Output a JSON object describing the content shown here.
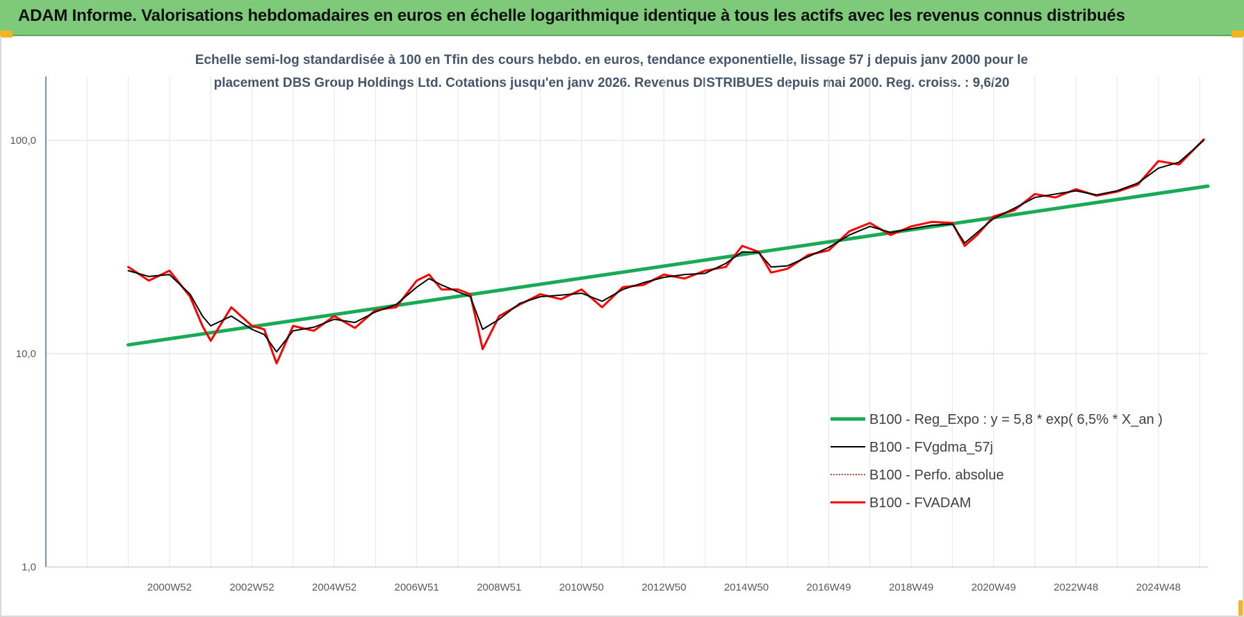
{
  "banner": {
    "title": "ADAM Informe. Valorisations hebdomadaires en euros en échelle logarithmique identique à tous les actifs avec les revenus connus distribués"
  },
  "colors": {
    "banner": "#7ec97a",
    "regression": "#1aaa55",
    "smoothed": "#000000",
    "absolute": "#c00000",
    "adam": "#ff0000"
  },
  "chart_data": {
    "type": "line",
    "title_lines": [
      "Echelle semi-log standardisée à 100 en Tfin des cours hebdo. en euros, tendance exponentielle, lissage 57 j depuis janv 2000 pour le",
      "placement DBS Group Holdings Ltd. Cotations jusqu'en janv 2026. Revenus DISTRIBUES depuis mai 2000. Reg. croiss. : 9,6/20"
    ],
    "y_scale": "log",
    "ylim": [
      1,
      180
    ],
    "y_ticks": [
      "1,0",
      "10,0",
      "100,0"
    ],
    "x_range": [
      1998.0,
      2026.2
    ],
    "x_tick_labels": [
      "2000W52",
      "2002W52",
      "2004W52",
      "2006W51",
      "2008W51",
      "2010W50",
      "2012W50",
      "2014W50",
      "2016W49",
      "2018W49",
      "2020W49",
      "2022W48",
      "2024W48"
    ],
    "grid": true,
    "legend_position": "bottom-right",
    "series": [
      {
        "name": "B100 - Reg_Expo : y = 5,8 * exp( 6,5% *  X_an )",
        "x": [
          2000.0,
          2026.2
        ],
        "values": [
          11.0,
          61.0
        ]
      },
      {
        "name": "B100 - FVgdma_57j",
        "x": [
          2000.0,
          2000.5,
          2001.0,
          2001.5,
          2001.8,
          2002.0,
          2002.5,
          2003.0,
          2003.3,
          2003.6,
          2004.0,
          2004.5,
          2005.0,
          2005.5,
          2006.0,
          2006.5,
          2007.0,
          2007.3,
          2007.6,
          2008.0,
          2008.3,
          2008.6,
          2009.0,
          2009.5,
          2010.0,
          2010.5,
          2011.0,
          2011.5,
          2012.0,
          2012.5,
          2013.0,
          2013.5,
          2014.0,
          2014.5,
          2014.9,
          2015.3,
          2015.6,
          2016.0,
          2016.5,
          2017.0,
          2017.5,
          2018.0,
          2018.5,
          2019.0,
          2019.5,
          2020.0,
          2020.3,
          2020.6,
          2021.0,
          2021.5,
          2022.0,
          2022.5,
          2023.0,
          2023.5,
          2024.0,
          2024.5,
          2025.0,
          2025.5,
          2026.1
        ],
        "values": [
          24.5,
          23.0,
          23.5,
          19.0,
          15.0,
          13.5,
          15.0,
          13.0,
          12.3,
          10.2,
          12.8,
          13.3,
          14.5,
          14.0,
          15.7,
          17.0,
          20.5,
          22.5,
          21.0,
          19.5,
          18.5,
          13.0,
          14.5,
          17.2,
          18.5,
          18.8,
          19.2,
          17.6,
          20.0,
          21.5,
          22.8,
          23.5,
          23.8,
          26.5,
          30.0,
          29.8,
          25.5,
          25.8,
          28.5,
          31.5,
          36.0,
          39.5,
          37.0,
          38.5,
          40.0,
          40.5,
          33.0,
          37.0,
          43.0,
          48.0,
          54.0,
          56.0,
          58.0,
          55.5,
          58.0,
          63.0,
          74.0,
          79.0,
          100.0
        ]
      },
      {
        "name": "B100 - Perfo. absolue",
        "x": [],
        "values": []
      },
      {
        "name": "B100 - FVADAM",
        "x": [
          2000.0,
          2000.5,
          2001.0,
          2001.5,
          2001.8,
          2002.0,
          2002.5,
          2003.0,
          2003.3,
          2003.6,
          2004.0,
          2004.5,
          2005.0,
          2005.5,
          2006.0,
          2006.5,
          2007.0,
          2007.3,
          2007.6,
          2008.0,
          2008.3,
          2008.6,
          2009.0,
          2009.5,
          2010.0,
          2010.5,
          2011.0,
          2011.5,
          2012.0,
          2012.5,
          2013.0,
          2013.5,
          2014.0,
          2014.5,
          2014.9,
          2015.3,
          2015.6,
          2016.0,
          2016.5,
          2017.0,
          2017.5,
          2018.0,
          2018.5,
          2019.0,
          2019.5,
          2020.0,
          2020.3,
          2020.6,
          2021.0,
          2021.5,
          2022.0,
          2022.5,
          2023.0,
          2023.5,
          2024.0,
          2024.5,
          2025.0,
          2025.5,
          2026.1
        ],
        "values": [
          25.5,
          22.0,
          24.5,
          18.5,
          13.5,
          11.5,
          16.5,
          13.5,
          13.0,
          9.0,
          13.5,
          12.8,
          15.0,
          13.2,
          16.0,
          16.5,
          22.0,
          23.5,
          20.0,
          20.0,
          19.0,
          10.5,
          15.0,
          17.0,
          19.0,
          18.0,
          20.0,
          16.5,
          20.5,
          21.0,
          23.5,
          22.5,
          24.5,
          25.5,
          32.0,
          30.0,
          24.0,
          25.0,
          29.0,
          30.5,
          37.5,
          41.0,
          36.0,
          39.5,
          41.5,
          41.0,
          32.0,
          36.0,
          44.0,
          47.0,
          56.0,
          54.0,
          59.0,
          55.0,
          57.5,
          62.0,
          80.0,
          77.0,
          101.0
        ]
      }
    ]
  }
}
